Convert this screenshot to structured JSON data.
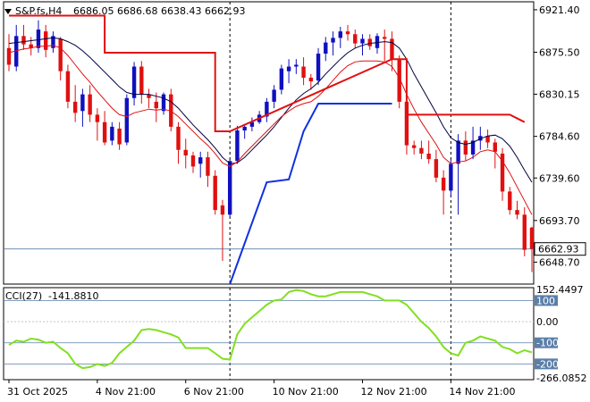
{
  "header": {
    "symbol": "S&P.fs,H4",
    "ohlc": "6686.05 6686.68 6638.43 6662.93"
  },
  "cci_header": {
    "label": "CCI(27)",
    "value": "-141.8810"
  },
  "colors": {
    "bull": "#1010c0",
    "bear": "#e01010",
    "ma_fast": "#e01010",
    "ma_slow": "#000040",
    "stop_upper": "#e01010",
    "stop_lower": "#1030e0",
    "cci_line": "#80e020",
    "level_line": "#5a7fa8",
    "price_box": "#ffffff"
  },
  "chart_data": [
    {
      "type": "candlestick",
      "title": "",
      "ylim": [
        6625,
        6930
      ],
      "price_ticks": [
        "6921.40",
        "6875.50",
        "6830.15",
        "6784.60",
        "6739.60",
        "6693.70",
        "6648.70"
      ],
      "current_price_label": "6662.93",
      "current_price": 6662.93,
      "x_tick_labels": [
        "31 Oct 2025",
        "4 Nov 21:00",
        "6 Nov 21:00",
        "10 Nov 21:00",
        "12 Nov 21:00",
        "14 Nov 21:00"
      ],
      "x_tick_index": [
        0,
        12,
        24,
        36,
        48,
        60
      ],
      "day_separator_index": [
        30,
        60
      ],
      "candles": [
        [
          6880,
          6895,
          6855,
          6862
        ],
        [
          6860,
          6905,
          6855,
          6893
        ],
        [
          6893,
          6905,
          6878,
          6884
        ],
        [
          6884,
          6892,
          6872,
          6880
        ],
        [
          6880,
          6910,
          6875,
          6900
        ],
        [
          6898,
          6905,
          6870,
          6878
        ],
        [
          6880,
          6898,
          6875,
          6893
        ],
        [
          6890,
          6892,
          6845,
          6855
        ],
        [
          6855,
          6862,
          6815,
          6822
        ],
        [
          6822,
          6840,
          6800,
          6810
        ],
        [
          6812,
          6836,
          6795,
          6830
        ],
        [
          6830,
          6840,
          6800,
          6808
        ],
        [
          6808,
          6815,
          6780,
          6800
        ],
        [
          6800,
          6812,
          6775,
          6778
        ],
        [
          6780,
          6800,
          6775,
          6795
        ],
        [
          6793,
          6800,
          6770,
          6776
        ],
        [
          6778,
          6830,
          6775,
          6826
        ],
        [
          6826,
          6865,
          6818,
          6860
        ],
        [
          6860,
          6866,
          6820,
          6830
        ],
        [
          6830,
          6836,
          6815,
          6826
        ],
        [
          6822,
          6832,
          6800,
          6815
        ],
        [
          6812,
          6832,
          6808,
          6830
        ],
        [
          6830,
          6836,
          6790,
          6795
        ],
        [
          6795,
          6800,
          6755,
          6770
        ],
        [
          6770,
          6782,
          6750,
          6764
        ],
        [
          6764,
          6768,
          6745,
          6752
        ],
        [
          6755,
          6768,
          6740,
          6762
        ],
        [
          6762,
          6768,
          6730,
          6742
        ],
        [
          6742,
          6748,
          6700,
          6705
        ],
        [
          6710,
          6716,
          6650,
          6700
        ],
        [
          6700,
          6760,
          6698,
          6758
        ],
        [
          6758,
          6796,
          6755,
          6791
        ],
        [
          6791,
          6798,
          6782,
          6795
        ],
        [
          6795,
          6805,
          6790,
          6800
        ],
        [
          6800,
          6812,
          6798,
          6808
        ],
        [
          6806,
          6826,
          6800,
          6822
        ],
        [
          6822,
          6840,
          6815,
          6835
        ],
        [
          6835,
          6862,
          6830,
          6858
        ],
        [
          6855,
          6868,
          6842,
          6860
        ],
        [
          6860,
          6868,
          6852,
          6862
        ],
        [
          6860,
          6870,
          6840,
          6848
        ],
        [
          6848,
          6852,
          6835,
          6844
        ],
        [
          6845,
          6880,
          6840,
          6874
        ],
        [
          6874,
          6892,
          6866,
          6886
        ],
        [
          6886,
          6898,
          6872,
          6891
        ],
        [
          6891,
          6903,
          6880,
          6898
        ],
        [
          6898,
          6905,
          6888,
          6895
        ],
        [
          6895,
          6900,
          6880,
          6885
        ],
        [
          6885,
          6895,
          6872,
          6890
        ],
        [
          6890,
          6895,
          6878,
          6882
        ],
        [
          6880,
          6896,
          6874,
          6893
        ],
        [
          6892,
          6900,
          6866,
          6890
        ],
        [
          6890,
          6898,
          6855,
          6868
        ],
        [
          6868,
          6872,
          6815,
          6822
        ],
        [
          6822,
          6830,
          6765,
          6775
        ],
        [
          6775,
          6780,
          6765,
          6772
        ],
        [
          6772,
          6780,
          6760,
          6766
        ],
        [
          6766,
          6780,
          6755,
          6760
        ],
        [
          6760,
          6770,
          6735,
          6740
        ],
        [
          6740,
          6748,
          6700,
          6726
        ],
        [
          6726,
          6760,
          6720,
          6755
        ],
        [
          6755,
          6787,
          6700,
          6780
        ],
        [
          6780,
          6790,
          6758,
          6765
        ],
        [
          6765,
          6795,
          6760,
          6780
        ],
        [
          6780,
          6795,
          6770,
          6785
        ],
        [
          6785,
          6792,
          6772,
          6778
        ],
        [
          6778,
          6782,
          6750,
          6768
        ],
        [
          6766,
          6772,
          6715,
          6725
        ],
        [
          6725,
          6730,
          6700,
          6705
        ],
        [
          6705,
          6715,
          6695,
          6700
        ],
        [
          6700,
          6708,
          6655,
          6662
        ],
        [
          6686,
          6687,
          6638,
          6663
        ]
      ],
      "ma_fast": [
        6875,
        6877,
        6879,
        6880,
        6882,
        6882,
        6883,
        6880,
        6872,
        6862,
        6852,
        6843,
        6833,
        6824,
        6815,
        6808,
        6806,
        6810,
        6812,
        6814,
        6813,
        6814,
        6812,
        6806,
        6798,
        6790,
        6782,
        6775,
        6766,
        6756,
        6752,
        6757,
        6766,
        6774,
        6782,
        6790,
        6798,
        6806,
        6812,
        6817,
        6820,
        6822,
        6828,
        6836,
        6845,
        6854,
        6861,
        6865,
        6866,
        6866,
        6866,
        6865,
        6860,
        6848,
        6830,
        6814,
        6800,
        6788,
        6776,
        6762,
        6755,
        6757,
        6758,
        6762,
        6768,
        6770,
        6768,
        6758,
        6745,
        6730,
        6715,
        6700
      ],
      "ma_slow": [
        6885,
        6886,
        6887,
        6888,
        6889,
        6890,
        6891,
        6890,
        6887,
        6883,
        6877,
        6870,
        6862,
        6854,
        6846,
        6838,
        6832,
        6830,
        6830,
        6830,
        6828,
        6826,
        6822,
        6815,
        6806,
        6797,
        6789,
        6781,
        6772,
        6762,
        6755,
        6756,
        6762,
        6770,
        6778,
        6786,
        6795,
        6805,
        6815,
        6824,
        6831,
        6836,
        6843,
        6852,
        6860,
        6868,
        6875,
        6880,
        6883,
        6885,
        6886,
        6887,
        6886,
        6880,
        6868,
        6852,
        6838,
        6824,
        6810,
        6795,
        6783,
        6778,
        6776,
        6778,
        6782,
        6785,
        6786,
        6782,
        6774,
        6762,
        6748,
        6735
      ],
      "stop_upper": [
        [
          0,
          6915
        ],
        [
          13,
          6915
        ],
        [
          13,
          6875
        ],
        [
          28,
          6875
        ],
        [
          28,
          6790
        ],
        [
          30,
          6790
        ],
        [
          30,
          6790
        ],
        [
          52,
          6868
        ],
        [
          54,
          6868
        ],
        [
          54,
          6808
        ],
        [
          68,
          6808
        ],
        [
          70,
          6800
        ]
      ],
      "stop_lower": [
        [
          30,
          6625
        ],
        [
          35,
          6735
        ],
        [
          38,
          6738
        ],
        [
          40,
          6790
        ],
        [
          42,
          6820
        ],
        [
          52,
          6820
        ]
      ],
      "cci": {
        "ticks": [
          "152.4497",
          "100",
          "0.00",
          "-100",
          "-200",
          "-266.0852"
        ],
        "levels": [
          100,
          0,
          -100,
          -200
        ],
        "range": [
          -266.0852,
          152.4497
        ],
        "values": [
          -110,
          -90,
          -95,
          -80,
          -85,
          -100,
          -95,
          -125,
          -150,
          -200,
          -220,
          -215,
          -200,
          -210,
          -195,
          -150,
          -120,
          -90,
          -40,
          -35,
          -40,
          -50,
          -60,
          -75,
          -125,
          -125,
          -125,
          -125,
          -150,
          -175,
          -180,
          -60,
          -10,
          20,
          50,
          80,
          100,
          105,
          140,
          150,
          145,
          130,
          120,
          120,
          130,
          140,
          140,
          140,
          140,
          130,
          120,
          100,
          100,
          100,
          80,
          40,
          0,
          -30,
          -70,
          -120,
          -150,
          -160,
          -100,
          -90,
          -70,
          -80,
          -90,
          -120,
          -130,
          -150,
          -135,
          -145
        ]
      }
    }
  ]
}
